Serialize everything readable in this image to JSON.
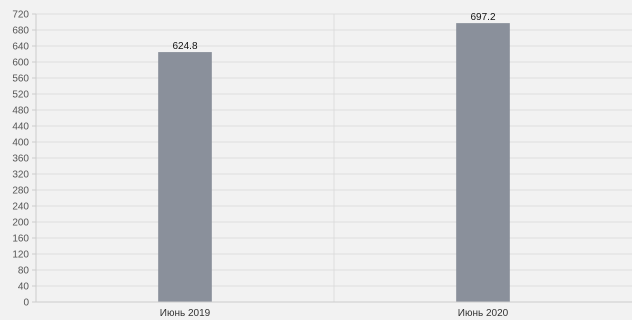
{
  "chart_data": {
    "type": "bar",
    "categories": [
      "Июнь 2019",
      "Июнь 2020"
    ],
    "values": [
      624.8,
      697.2
    ],
    "value_labels": [
      "624.8",
      "697.2"
    ],
    "title": "",
    "xlabel": "",
    "ylabel": "",
    "ylim": [
      0,
      720
    ],
    "yticks": [
      "0",
      "40",
      "80",
      "120",
      "160",
      "200",
      "240",
      "280",
      "320",
      "360",
      "400",
      "440",
      "480",
      "520",
      "560",
      "600",
      "640",
      "680",
      "720"
    ],
    "grid": true,
    "legend": "none",
    "colors": {
      "bar": "#8a909b",
      "grid": "#dddddd",
      "axis": "#cccccc",
      "background": "#f2f2f2"
    }
  }
}
